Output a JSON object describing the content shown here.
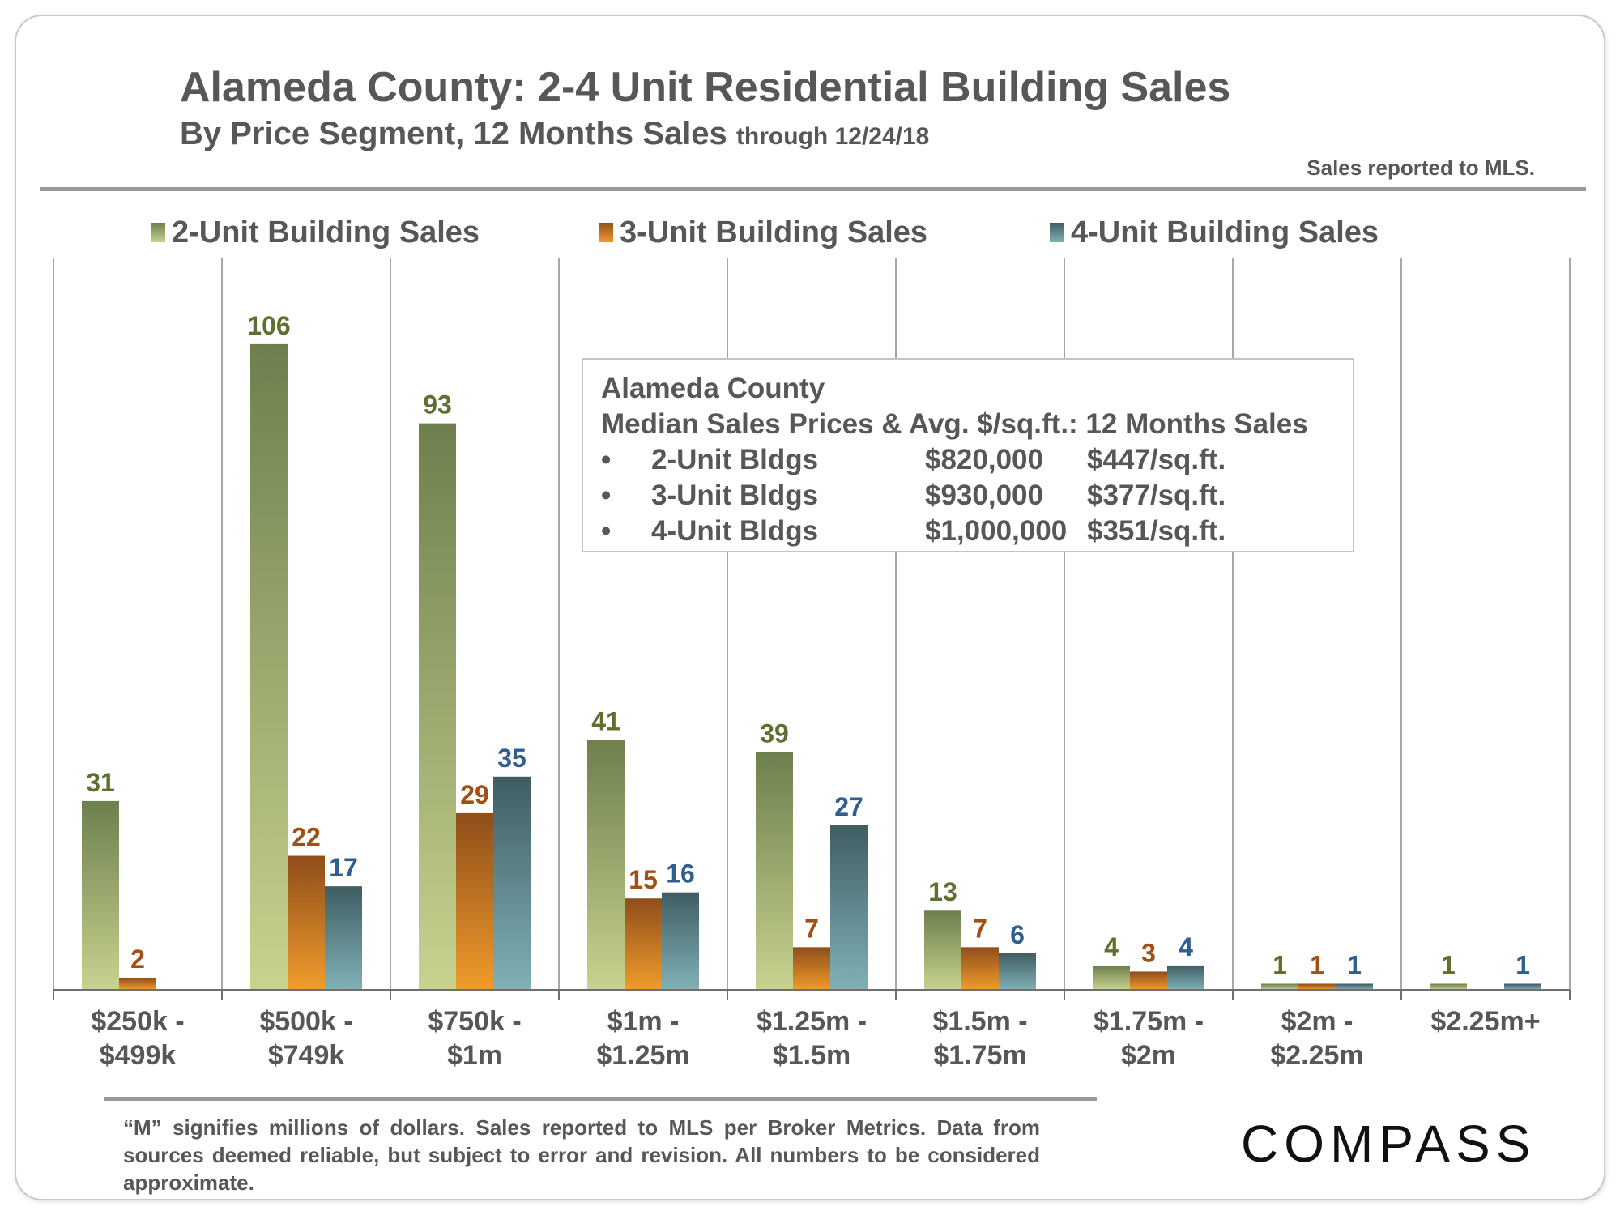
{
  "header": {
    "title": "Alameda County: 2-4 Unit Residential Building Sales",
    "subtitle_main": "By Price Segment, 12 Months Sales",
    "subtitle_small": "through 12/24/18",
    "mls_note": "Sales reported to MLS."
  },
  "chart_data": {
    "type": "bar",
    "title": "Alameda County: 2-4 Unit Residential Building Sales",
    "subtitle": "By Price Segment, 12 Months Sales through 12/24/18",
    "xlabel": "",
    "ylabel": "",
    "ylim": [
      0,
      120
    ],
    "grid": false,
    "legend_position": "top",
    "categories": [
      [
        "$250k -",
        "$499k"
      ],
      [
        "$500k -",
        "$749k"
      ],
      [
        "$750k -",
        "$1m"
      ],
      [
        "$1m -",
        "$1.25m"
      ],
      [
        "$1.25m -",
        "$1.5m"
      ],
      [
        "$1.5m -",
        "$1.75m"
      ],
      [
        "$1.75m -",
        "$2m"
      ],
      [
        "$2m -",
        "$2.25m"
      ],
      [
        "$2.25m+"
      ]
    ],
    "series": [
      {
        "name": "2-Unit Building Sales",
        "color": "#5e7030",
        "values": [
          31,
          106,
          93,
          41,
          39,
          13,
          4,
          1,
          1
        ]
      },
      {
        "name": "3-Unit Building Sales",
        "color": "#a34f12",
        "values": [
          2,
          22,
          29,
          15,
          7,
          7,
          3,
          1,
          null
        ]
      },
      {
        "name": "4-Unit Building Sales",
        "color": "#2f5f8f",
        "values": [
          null,
          17,
          35,
          16,
          27,
          6,
          4,
          1,
          1
        ]
      }
    ]
  },
  "infobox": {
    "title1": "Alameda County",
    "title2": "Median Sales Prices & Avg. $/sq.ft.: 12 Months Sales",
    "rows": [
      {
        "bullet": "•",
        "name": "2-Unit Bldgs",
        "price": "$820,000",
        "sqft": "$447/sq.ft."
      },
      {
        "bullet": "•",
        "name": "3-Unit Bldgs",
        "price": "$930,000",
        "sqft": "$377/sq.ft."
      },
      {
        "bullet": "•",
        "name": "4-Unit Bldgs",
        "price": "$1,000,000",
        "sqft": "$351/sq.ft."
      }
    ]
  },
  "footer": {
    "note": "“M” signifies millions of dollars. Sales reported to MLS per Broker Metrics. Data from sources deemed reliable, but subject to error and revision. All numbers to be considered approximate.",
    "logo": "COMPASS"
  }
}
